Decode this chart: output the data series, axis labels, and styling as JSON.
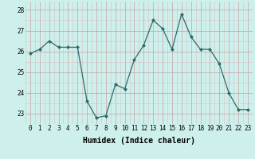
{
  "x": [
    0,
    1,
    2,
    3,
    4,
    5,
    6,
    7,
    8,
    9,
    10,
    11,
    12,
    13,
    14,
    15,
    16,
    17,
    18,
    19,
    20,
    21,
    22,
    23
  ],
  "y": [
    25.9,
    26.1,
    26.5,
    26.2,
    26.2,
    26.2,
    23.6,
    22.8,
    22.9,
    24.4,
    24.2,
    25.6,
    26.3,
    27.5,
    27.1,
    26.1,
    27.8,
    26.7,
    26.1,
    26.1,
    25.4,
    24.0,
    23.2,
    23.2
  ],
  "line_color": "#2d6b6b",
  "marker": "D",
  "marker_size": 2.0,
  "bg_color": "#cef0ec",
  "grid_color_major": "#c8a0a0",
  "grid_color_minor": "#d8c0c0",
  "xlabel": "Humidex (Indice chaleur)",
  "ylim": [
    22.5,
    28.4
  ],
  "yticks": [
    23,
    24,
    25,
    26,
    27,
    28
  ],
  "xticks": [
    0,
    1,
    2,
    3,
    4,
    5,
    6,
    7,
    8,
    9,
    10,
    11,
    12,
    13,
    14,
    15,
    16,
    17,
    18,
    19,
    20,
    21,
    22,
    23
  ],
  "tick_fontsize": 5.5,
  "label_fontsize": 7.0
}
